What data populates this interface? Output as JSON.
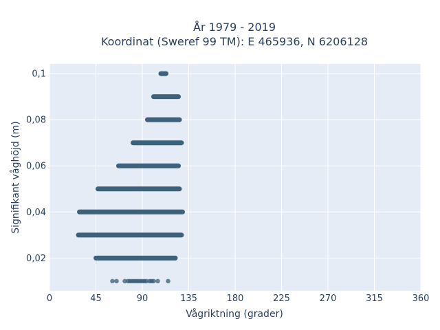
{
  "chart_data": {
    "type": "scatter",
    "title": [
      "År 1979 - 2019",
      "Koordinat (Sweref 99 TM): E 465936, N 6206128"
    ],
    "xlabel": "Vågriktning (grader)",
    "ylabel": "Signifikant våghöjd (m)",
    "xlim": [
      0,
      360
    ],
    "ylim": [
      0.0058,
      0.1042
    ],
    "xticks": [
      0,
      45,
      90,
      135,
      180,
      225,
      270,
      315,
      360
    ],
    "xtick_labels": [
      "0",
      "45",
      "90",
      "135",
      "180",
      "225",
      "270",
      "315",
      "360"
    ],
    "yticks": [
      0.02,
      0.04,
      0.06,
      0.08,
      0.1
    ],
    "ytick_labels": [
      "0,02",
      "0,04",
      "0,06",
      "0,08",
      "0,1"
    ],
    "grid": true,
    "plot_background": "#e5ecf6",
    "marker_color": "#2f5570",
    "bands": [
      {
        "y": 0.1,
        "x_min": 108,
        "x_max": 113
      },
      {
        "y": 0.09,
        "x_min": 101,
        "x_max": 125
      },
      {
        "y": 0.08,
        "x_min": 95,
        "x_max": 126
      },
      {
        "y": 0.07,
        "x_min": 81,
        "x_max": 128
      },
      {
        "y": 0.06,
        "x_min": 67,
        "x_max": 125
      },
      {
        "y": 0.05,
        "x_min": 47,
        "x_max": 126
      },
      {
        "y": 0.04,
        "x_min": 29,
        "x_max": 129
      },
      {
        "y": 0.03,
        "x_min": 28,
        "x_max": 128
      },
      {
        "y": 0.02,
        "x_min": 45,
        "x_max": 122
      }
    ],
    "points": [
      {
        "x": 61,
        "y": 0.01
      },
      {
        "x": 65,
        "y": 0.01
      },
      {
        "x": 73,
        "y": 0.01
      },
      {
        "x": 76,
        "y": 0.01
      },
      {
        "x": 78,
        "y": 0.01
      },
      {
        "x": 80,
        "y": 0.01
      },
      {
        "x": 82,
        "y": 0.01
      },
      {
        "x": 84,
        "y": 0.01
      },
      {
        "x": 86,
        "y": 0.01
      },
      {
        "x": 88,
        "y": 0.01
      },
      {
        "x": 90,
        "y": 0.01
      },
      {
        "x": 92,
        "y": 0.01
      },
      {
        "x": 94,
        "y": 0.01
      },
      {
        "x": 97,
        "y": 0.01
      },
      {
        "x": 99,
        "y": 0.01
      },
      {
        "x": 101,
        "y": 0.01
      },
      {
        "x": 105,
        "y": 0.01
      },
      {
        "x": 115,
        "y": 0.01
      }
    ]
  }
}
